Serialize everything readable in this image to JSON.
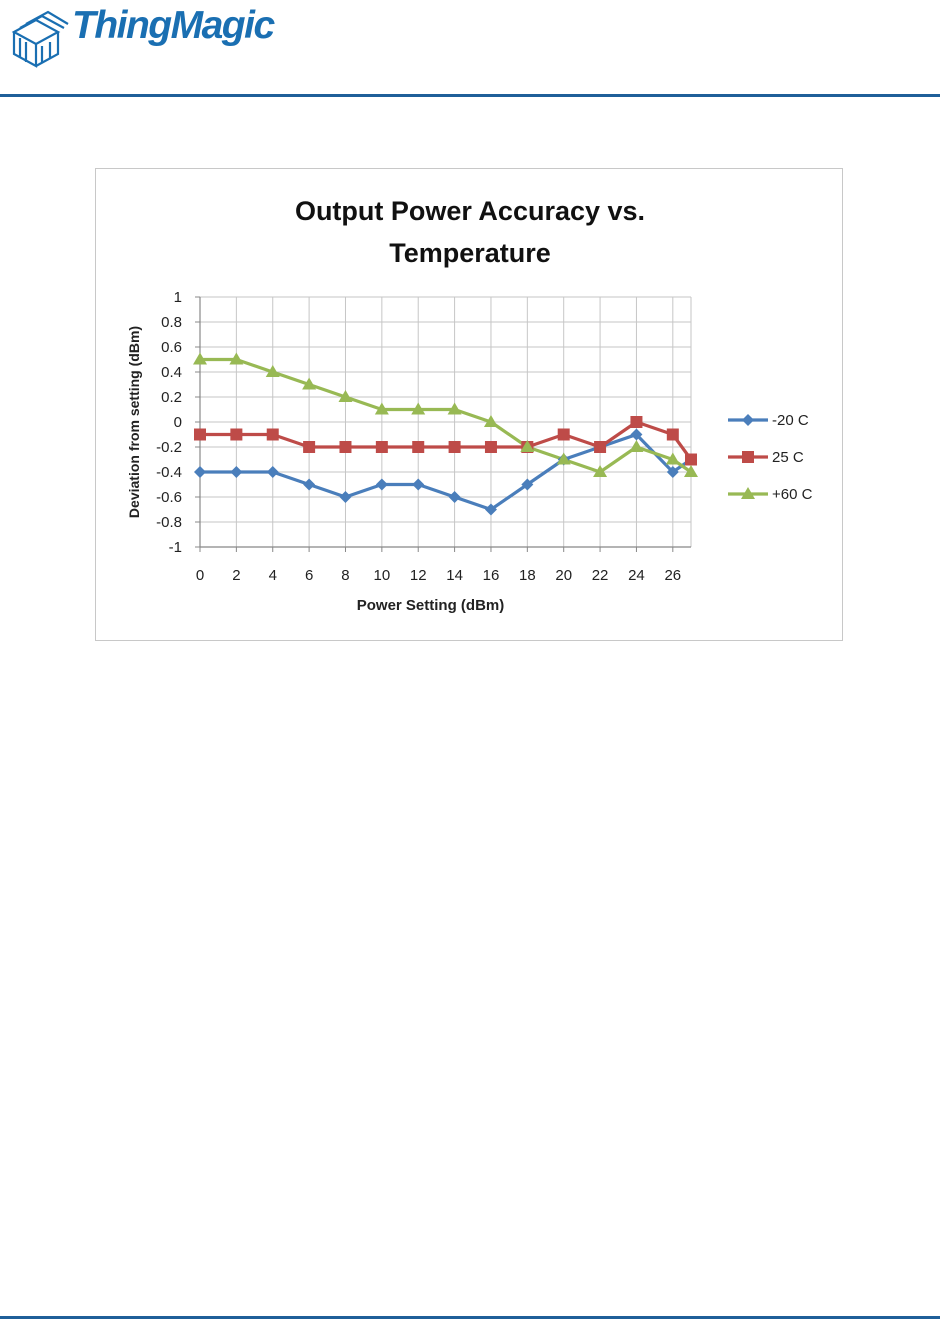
{
  "header": {
    "brand": "ThingMagic",
    "accent_color": "#1f5f99",
    "logo_icon": "stacked-tag-icon"
  },
  "chart_data": {
    "type": "line",
    "title_lines": [
      "Output Power Accuracy vs.",
      "Temperature"
    ],
    "xlabel": "Power Setting (dBm)",
    "ylabel": "Deviation  from setting (dBm)",
    "x_ticks": [
      0,
      2,
      4,
      6,
      8,
      10,
      12,
      14,
      16,
      18,
      20,
      22,
      24,
      26
    ],
    "y_ticks": [
      "1",
      "0.8",
      "0.6",
      "0.4",
      "0.2",
      "0",
      "-0.2",
      "-0.4",
      "-0.6",
      "-0.8",
      "-1"
    ],
    "xlim": [
      0,
      27
    ],
    "ylim": [
      -1,
      1
    ],
    "grid": true,
    "legend_position": "right",
    "series": [
      {
        "name": "-20 C",
        "color": "#4a7ebb",
        "marker": "diamond",
        "x": [
          0,
          2,
          4,
          6,
          8,
          10,
          12,
          14,
          16,
          18,
          20,
          22,
          24,
          26,
          27
        ],
        "values": [
          -0.4,
          -0.4,
          -0.4,
          -0.5,
          -0.6,
          -0.5,
          -0.5,
          -0.6,
          -0.7,
          -0.5,
          -0.3,
          -0.2,
          -0.1,
          -0.4,
          -0.3
        ]
      },
      {
        "name": "25 C",
        "color": "#be4b48",
        "marker": "square",
        "x": [
          0,
          2,
          4,
          6,
          8,
          10,
          12,
          14,
          16,
          18,
          20,
          22,
          24,
          26,
          27
        ],
        "values": [
          -0.1,
          -0.1,
          -0.1,
          -0.2,
          -0.2,
          -0.2,
          -0.2,
          -0.2,
          -0.2,
          -0.2,
          -0.1,
          -0.2,
          0.0,
          -0.1,
          -0.3
        ]
      },
      {
        "name": "+60 C",
        "color": "#98b954",
        "marker": "triangle",
        "x": [
          0,
          2,
          4,
          6,
          8,
          10,
          12,
          14,
          16,
          18,
          20,
          22,
          24,
          26,
          27
        ],
        "values": [
          0.5,
          0.5,
          0.4,
          0.3,
          0.2,
          0.1,
          0.1,
          0.1,
          0.0,
          -0.2,
          -0.3,
          -0.4,
          -0.2,
          -0.3,
          -0.4
        ]
      }
    ]
  }
}
